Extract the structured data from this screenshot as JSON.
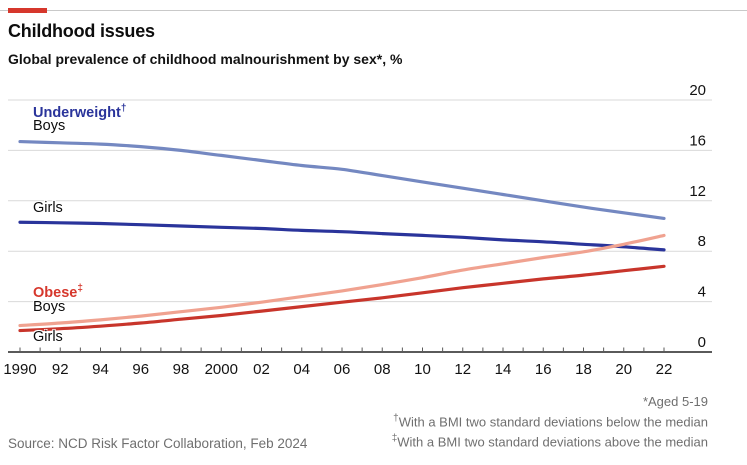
{
  "header": {
    "title": "Childhood issues",
    "subtitle": "Global prevalence of childhood malnourishment by sex*, %"
  },
  "accent_color": "#d6372c",
  "chart_data": {
    "type": "line",
    "x": [
      1990,
      1992,
      1994,
      1996,
      1998,
      2000,
      2002,
      2004,
      2006,
      2008,
      2010,
      2012,
      2014,
      2016,
      2018,
      2020,
      2022
    ],
    "series": [
      {
        "name": "Underweight boys",
        "color": "#7488c1",
        "values": [
          16.7,
          16.6,
          16.5,
          16.3,
          16.0,
          15.6,
          15.2,
          14.8,
          14.5,
          14.0,
          13.5,
          13.0,
          12.5,
          12.0,
          11.5,
          11.05,
          10.6
        ]
      },
      {
        "name": "Underweight girls",
        "color": "#2a349b",
        "values": [
          10.3,
          10.25,
          10.2,
          10.1,
          10.0,
          9.9,
          9.8,
          9.65,
          9.55,
          9.4,
          9.25,
          9.1,
          8.9,
          8.75,
          8.55,
          8.35,
          8.1
        ]
      },
      {
        "name": "Obese boys",
        "color": "#f0a290",
        "values": [
          2.1,
          2.3,
          2.55,
          2.85,
          3.2,
          3.55,
          3.95,
          4.4,
          4.85,
          5.35,
          5.9,
          6.5,
          7.0,
          7.5,
          7.95,
          8.55,
          9.25
        ]
      },
      {
        "name": "Obese girls",
        "color": "#c8352b",
        "values": [
          1.7,
          1.85,
          2.05,
          2.3,
          2.6,
          2.9,
          3.25,
          3.6,
          3.95,
          4.3,
          4.7,
          5.1,
          5.45,
          5.8,
          6.1,
          6.45,
          6.8
        ]
      }
    ],
    "ylim": [
      0,
      20
    ],
    "yticks": [
      0,
      4,
      8,
      12,
      16,
      20
    ],
    "y_axis_side": "right",
    "grid": "horizontal",
    "xticks": [
      {
        "year": 1990,
        "label": "1990"
      },
      {
        "year": 1992,
        "label": "92"
      },
      {
        "year": 1994,
        "label": "94"
      },
      {
        "year": 1996,
        "label": "96"
      },
      {
        "year": 1998,
        "label": "98"
      },
      {
        "year": 2000,
        "label": "2000"
      },
      {
        "year": 2002,
        "label": "02"
      },
      {
        "year": 2004,
        "label": "04"
      },
      {
        "year": 2006,
        "label": "06"
      },
      {
        "year": 2008,
        "label": "08"
      },
      {
        "year": 2010,
        "label": "10"
      },
      {
        "year": 2012,
        "label": "12"
      },
      {
        "year": 2014,
        "label": "14"
      },
      {
        "year": 2016,
        "label": "16"
      },
      {
        "year": 2018,
        "label": "18"
      },
      {
        "year": 2020,
        "label": "20"
      },
      {
        "year": 2022,
        "label": "22"
      }
    ]
  },
  "chart_labels": {
    "underweight_title": "Underweight",
    "underweight_dagger": "†",
    "underweight_boys": "Boys",
    "underweight_girls": "Girls",
    "obese_title": "Obese",
    "obese_dagger": "‡",
    "obese_boys": "Boys",
    "obese_girls": "Girls",
    "obese_color": "#d6372c",
    "underweight_color": "#2a349b"
  },
  "footnotes": [
    {
      "marker": "*",
      "text": "Aged 5-19"
    },
    {
      "marker": "†",
      "text": "With a BMI two standard deviations below the median"
    },
    {
      "marker": "‡",
      "text": "With a BMI two standard deviations above the median"
    }
  ],
  "source": "Source: NCD Risk Factor Collaboration, Feb 2024"
}
